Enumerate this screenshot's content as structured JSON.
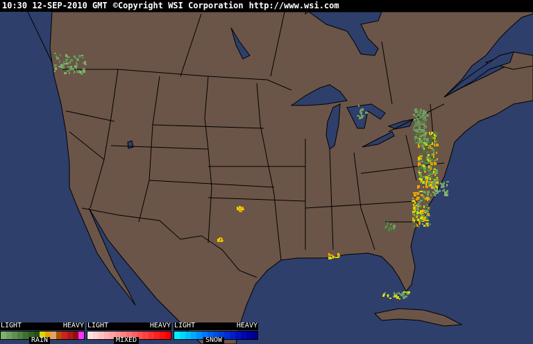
{
  "header": {
    "time": "10:30 12-SEP-2010 GMT",
    "copyright": "©Copyright WSI Corporation",
    "url": "http://www.wsi.com"
  },
  "map": {
    "colors": {
      "ocean": "#2e3f6b",
      "land": "#6b5548",
      "borders": "#000000"
    }
  },
  "legends": [
    {
      "name": "RAIN",
      "light": "LIGHT",
      "heavy": "HEAVY",
      "colors": [
        "#7fb070",
        "#6fa060",
        "#5f9050",
        "#4f8040",
        "#3f7030",
        "#2f6020",
        "#234f18",
        "#d8d800",
        "#f0a000",
        "#e0a070",
        "#b05000",
        "#d02020",
        "#b01818",
        "#901010",
        "#ff30ff"
      ]
    },
    {
      "name": "MIXED",
      "light": "LIGHT",
      "heavy": "HEAVY",
      "colors": [
        "#ffe0e0",
        "#ffd0d0",
        "#ffc0c0",
        "#ffb0b0",
        "#ffa0a0",
        "#ff9090",
        "#ff8080",
        "#ff7070",
        "#ff6060",
        "#ff5050",
        "#ff4040",
        "#ff3030",
        "#ff2020",
        "#ff1010",
        "#ff0000"
      ]
    },
    {
      "name": "SNOW",
      "light": "LIGHT",
      "heavy": "HEAVY",
      "colors": [
        "#00f0ff",
        "#00d8ff",
        "#00c0ff",
        "#00a8ff",
        "#0090ff",
        "#0078ff",
        "#0060f0",
        "#0050e0",
        "#0040d8",
        "#0030d0",
        "#0020c8",
        "#0010c0",
        "#0008b0",
        "#0000a0",
        "#000090"
      ]
    }
  ]
}
